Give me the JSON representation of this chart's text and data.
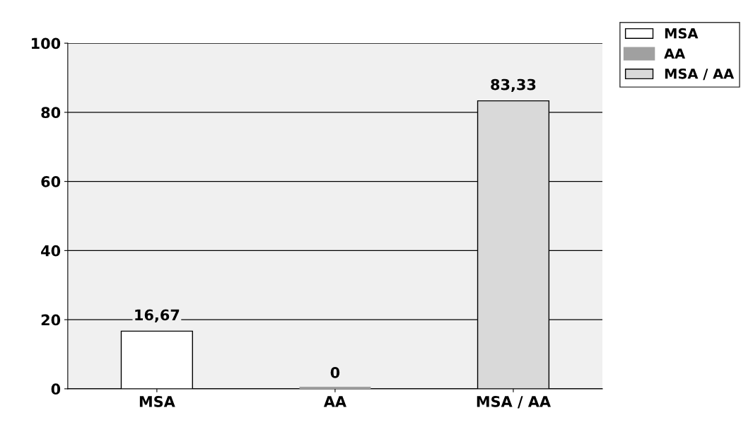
{
  "chart_data": {
    "type": "bar",
    "stacked": true,
    "categories": [
      "MSA",
      "AA",
      "MSA / AA"
    ],
    "series": [
      {
        "name": "MSA",
        "color": "#ffffff",
        "values": [
          16.67,
          null,
          null
        ],
        "value_labels": [
          "16,67",
          null,
          null
        ]
      },
      {
        "name": "AA",
        "color": "#a0a0a0",
        "values": [
          null,
          0,
          null
        ],
        "value_labels": [
          null,
          "0",
          null
        ]
      },
      {
        "name": "MSA / AA",
        "color": "#d9d9d9",
        "values": [
          null,
          null,
          83.33
        ],
        "value_labels": [
          null,
          null,
          "83,33"
        ]
      }
    ],
    "ylim": [
      0,
      100
    ],
    "yticks": [
      0,
      20,
      40,
      60,
      80,
      100
    ],
    "grid": "y",
    "legend": "top right"
  }
}
